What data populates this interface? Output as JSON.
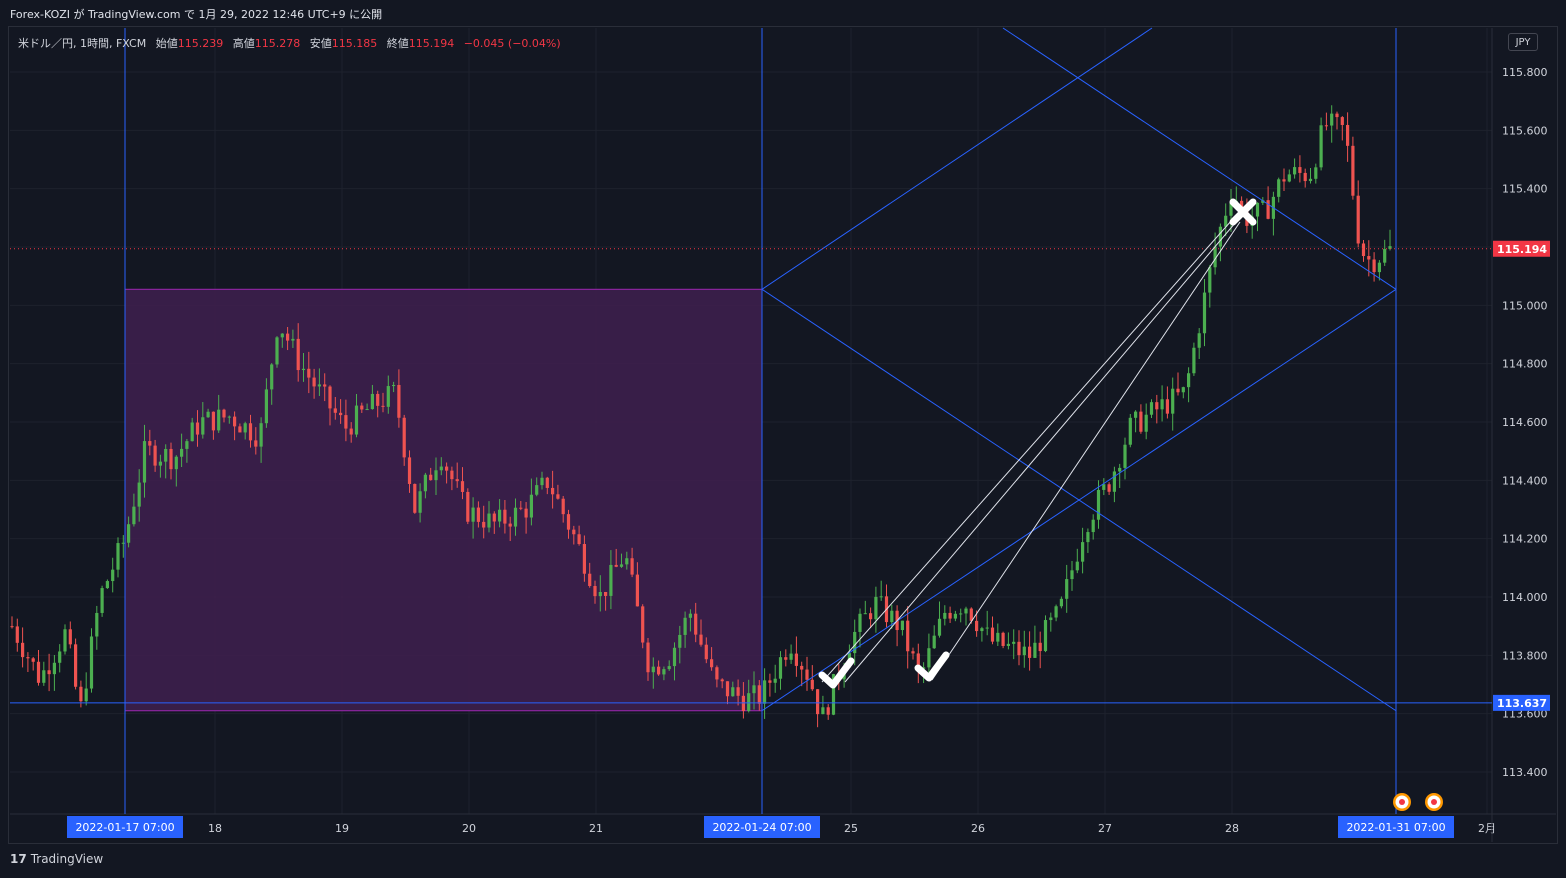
{
  "header": {
    "title": "Forex-KOZI が TradingView.com で 1月 29, 2022 12:46 UTC+9 に公開"
  },
  "legend": {
    "symbol": "米ドル／円, 1時間, FXCM",
    "open_label": "始値",
    "open": "115.239",
    "high_label": "高値",
    "high": "115.278",
    "low_label": "安値",
    "low": "115.185",
    "close_label": "終値",
    "close": "115.194",
    "change": "−0.045 (−0.04%)"
  },
  "unit_button": "JPY",
  "footer": {
    "logo": "17",
    "brand": "TradingView"
  },
  "colors": {
    "background": "#131722",
    "grid": "#1e222d",
    "up": "#26a69a",
    "up_body": "#4caf50",
    "down": "#ef5350",
    "drawing": "#2962ff",
    "box_fill": "#3d1f4d",
    "box_border": "#9c27b0",
    "price_tag": "#f23645",
    "level_tag": "#2962ff"
  },
  "chart_data": {
    "type": "candlestick",
    "y_axis": {
      "ticks": [
        "115.800",
        "115.600",
        "115.400",
        "115.200",
        "115.000",
        "114.800",
        "114.600",
        "114.400",
        "114.200",
        "114.000",
        "113.800",
        "113.600",
        "113.400"
      ],
      "min": 113.27,
      "max": 115.98
    },
    "x_axis": {
      "ticks": [
        "18",
        "19",
        "20",
        "21",
        "25",
        "26",
        "27",
        "28",
        "2月"
      ],
      "highlight_labels": [
        "2022-01-17   07:00",
        "2022-01-24   07:00",
        "2022-01-31   07:00"
      ]
    },
    "last_price": "115.194",
    "level_line": "113.637",
    "drawings": [
      "rectangle-range",
      "projection-lines",
      "vertical-lines",
      "check-marks",
      "cross-mark"
    ]
  }
}
